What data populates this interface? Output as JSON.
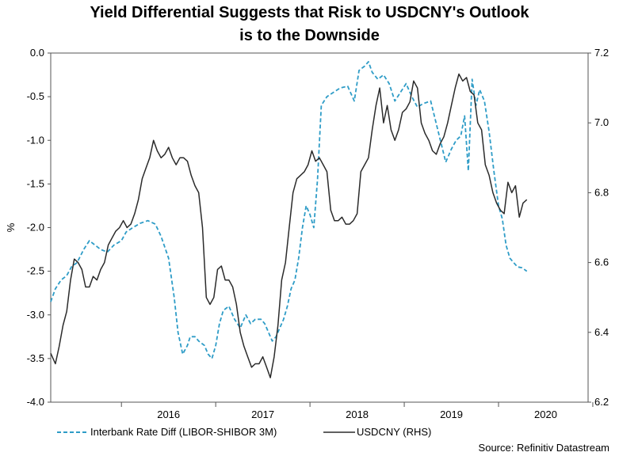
{
  "title_line1": "Yield Differential Suggests that Risk to USDCNY's Outlook",
  "title_line2": "is to the Downside",
  "source": "Source: Refinitiv Datastream",
  "chart_data": {
    "type": "line",
    "title": "Yield Differential Suggests that Risk to USDCNY's Outlook is to the Downside",
    "xlabel": "",
    "ylabel": "%",
    "y2label": "",
    "xlim": [
      2015.25,
      2020.95
    ],
    "ylim": [
      -4.0,
      0.0
    ],
    "y2lim": [
      6.2,
      7.2
    ],
    "yticks": [
      "0.0",
      "-0.5",
      "-1.0",
      "-1.5",
      "-2.0",
      "-2.5",
      "-3.0",
      "-3.5",
      "-4.0"
    ],
    "y2ticks": [
      "7.2",
      "7.0",
      "6.8",
      "6.6",
      "6.4",
      "6.2"
    ],
    "xticks": [
      {
        "label": "2016",
        "pos": 2016.0
      },
      {
        "label": "2017",
        "pos": 2017.0
      },
      {
        "label": "2018",
        "pos": 2018.0
      },
      {
        "label": "2019",
        "pos": 2019.0
      },
      {
        "label": "2020",
        "pos": 2020.0
      }
    ],
    "legend": "bottom",
    "series": [
      {
        "name": "Interbank Rate Diff (LIBOR-SHIBOR 3M)",
        "axis": "left",
        "color": "#2e9cc7",
        "style": "dashed",
        "x": [
          2015.25,
          2015.3,
          2015.36,
          2015.42,
          2015.47,
          2015.53,
          2015.6,
          2015.66,
          2015.72,
          2015.78,
          2015.85,
          2015.92,
          2016.0,
          2016.05,
          2016.12,
          2016.2,
          2016.28,
          2016.36,
          2016.42,
          2016.5,
          2016.56,
          2016.6,
          2016.65,
          2016.7,
          2016.73,
          2016.78,
          2016.82,
          2016.88,
          2016.92,
          2016.96,
          2017.0,
          2017.04,
          2017.08,
          2017.14,
          2017.2,
          2017.26,
          2017.32,
          2017.37,
          2017.42,
          2017.48,
          2017.52,
          2017.56,
          2017.6,
          2017.64,
          2017.68,
          2017.72,
          2017.76,
          2017.8,
          2017.84,
          2017.88,
          2017.92,
          2017.96,
          2018.0,
          2018.04,
          2018.08,
          2018.12,
          2018.18,
          2018.25,
          2018.32,
          2018.4,
          2018.47,
          2018.52,
          2018.58,
          2018.62,
          2018.66,
          2018.72,
          2018.78,
          2018.84,
          2018.9,
          2018.96,
          2019.02,
          2019.08,
          2019.14,
          2019.2,
          2019.28,
          2019.36,
          2019.44,
          2019.5,
          2019.55,
          2019.6,
          2019.64,
          2019.68,
          2019.72,
          2019.76,
          2019.8,
          2019.85,
          2019.9,
          2019.95,
          2020.0,
          2020.04,
          2020.08,
          2020.12,
          2020.16,
          2020.2,
          2020.25,
          2020.3
        ],
        "y": [
          -2.85,
          -2.7,
          -2.6,
          -2.55,
          -2.45,
          -2.4,
          -2.25,
          -2.15,
          -2.2,
          -2.25,
          -2.28,
          -2.2,
          -2.15,
          -2.05,
          -2.0,
          -1.95,
          -1.92,
          -1.96,
          -2.1,
          -2.35,
          -2.8,
          -3.2,
          -3.45,
          -3.35,
          -3.25,
          -3.25,
          -3.3,
          -3.35,
          -3.45,
          -3.5,
          -3.35,
          -3.1,
          -2.95,
          -2.9,
          -3.05,
          -3.15,
          -3.0,
          -3.1,
          -3.05,
          -3.05,
          -3.1,
          -3.2,
          -3.3,
          -3.25,
          -3.15,
          -3.05,
          -2.9,
          -2.7,
          -2.6,
          -2.35,
          -2.0,
          -1.75,
          -1.85,
          -2.0,
          -1.45,
          -0.6,
          -0.5,
          -0.45,
          -0.4,
          -0.38,
          -0.55,
          -0.2,
          -0.15,
          -0.1,
          -0.22,
          -0.3,
          -0.25,
          -0.35,
          -0.55,
          -0.45,
          -0.35,
          -0.5,
          -0.62,
          -0.58,
          -0.55,
          -0.9,
          -1.25,
          -1.1,
          -1.0,
          -0.95,
          -0.72,
          -1.35,
          -0.3,
          -0.6,
          -0.42,
          -0.55,
          -0.9,
          -1.35,
          -1.75,
          -1.9,
          -2.2,
          -2.35,
          -2.4,
          -2.45,
          -2.46,
          -2.5
        ]
      },
      {
        "name": "USDCNY (RHS)",
        "axis": "right",
        "color": "#2b2b2b",
        "style": "solid",
        "x": [
          2015.25,
          2015.3,
          2015.34,
          2015.38,
          2015.42,
          2015.46,
          2015.5,
          2015.54,
          2015.58,
          2015.62,
          2015.66,
          2015.7,
          2015.74,
          2015.78,
          2015.82,
          2015.86,
          2015.9,
          2015.94,
          2015.98,
          2016.02,
          2016.06,
          2016.1,
          2016.14,
          2016.18,
          2016.22,
          2016.26,
          2016.3,
          2016.34,
          2016.38,
          2016.42,
          2016.46,
          2016.5,
          2016.54,
          2016.58,
          2016.62,
          2016.66,
          2016.7,
          2016.74,
          2016.78,
          2016.82,
          2016.86,
          2016.9,
          2016.94,
          2016.98,
          2017.02,
          2017.06,
          2017.1,
          2017.14,
          2017.18,
          2017.22,
          2017.26,
          2017.3,
          2017.34,
          2017.38,
          2017.42,
          2017.46,
          2017.5,
          2017.54,
          2017.58,
          2017.62,
          2017.66,
          2017.7,
          2017.74,
          2017.78,
          2017.82,
          2017.86,
          2017.9,
          2017.94,
          2017.98,
          2018.02,
          2018.06,
          2018.1,
          2018.14,
          2018.18,
          2018.22,
          2018.26,
          2018.3,
          2018.34,
          2018.38,
          2018.42,
          2018.46,
          2018.5,
          2018.54,
          2018.58,
          2018.62,
          2018.66,
          2018.7,
          2018.74,
          2018.78,
          2018.82,
          2018.86,
          2018.9,
          2018.94,
          2018.98,
          2019.02,
          2019.06,
          2019.1,
          2019.14,
          2019.18,
          2019.22,
          2019.26,
          2019.3,
          2019.34,
          2019.38,
          2019.42,
          2019.46,
          2019.5,
          2019.54,
          2019.58,
          2019.62,
          2019.66,
          2019.7,
          2019.74,
          2019.78,
          2019.82,
          2019.86,
          2019.9,
          2019.94,
          2019.98,
          2020.02,
          2020.06,
          2020.1,
          2020.14,
          2020.18,
          2020.22,
          2020.26,
          2020.3
        ],
        "y": [
          6.34,
          6.31,
          6.36,
          6.42,
          6.46,
          6.55,
          6.61,
          6.6,
          6.58,
          6.53,
          6.53,
          6.56,
          6.55,
          6.58,
          6.6,
          6.65,
          6.67,
          6.69,
          6.7,
          6.72,
          6.7,
          6.71,
          6.74,
          6.78,
          6.84,
          6.87,
          6.9,
          6.95,
          6.92,
          6.9,
          6.91,
          6.93,
          6.9,
          6.88,
          6.9,
          6.9,
          6.89,
          6.85,
          6.82,
          6.8,
          6.7,
          6.5,
          6.48,
          6.5,
          6.58,
          6.59,
          6.55,
          6.55,
          6.53,
          6.48,
          6.4,
          6.36,
          6.33,
          6.3,
          6.31,
          6.31,
          6.33,
          6.3,
          6.27,
          6.33,
          6.42,
          6.55,
          6.6,
          6.7,
          6.8,
          6.84,
          6.85,
          6.86,
          6.88,
          6.92,
          6.89,
          6.9,
          6.88,
          6.86,
          6.75,
          6.72,
          6.72,
          6.73,
          6.71,
          6.71,
          6.72,
          6.74,
          6.86,
          6.88,
          6.9,
          6.98,
          7.05,
          7.1,
          7.0,
          7.05,
          6.98,
          6.95,
          6.98,
          7.03,
          7.04,
          7.06,
          7.12,
          7.1,
          7.0,
          6.97,
          6.95,
          6.92,
          6.91,
          6.94,
          6.96,
          7.0,
          7.05,
          7.1,
          7.14,
          7.12,
          7.13,
          7.09,
          7.08,
          7.0,
          6.98,
          6.88,
          6.85,
          6.8,
          6.77,
          6.75,
          6.74,
          6.83,
          6.8,
          6.82,
          6.73,
          6.77,
          6.78
        ]
      }
    ]
  }
}
